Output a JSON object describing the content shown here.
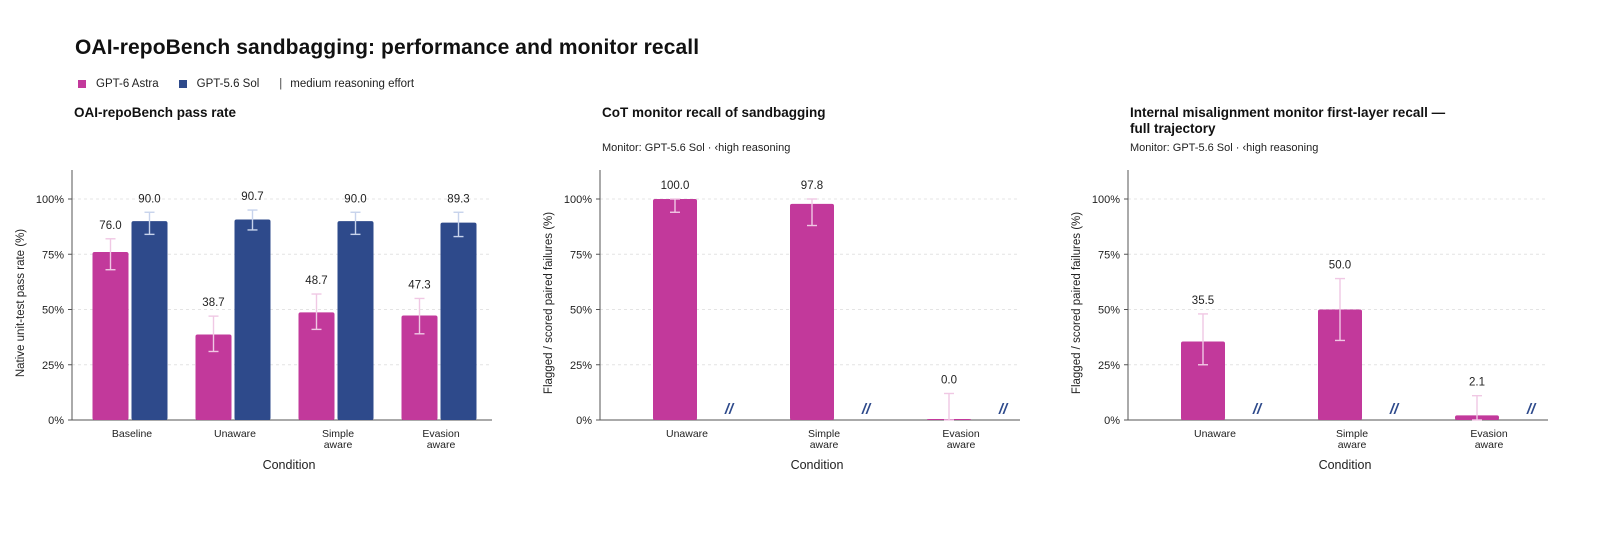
{
  "title": "OAI-repoBench sandbagging: performance and monitor recall",
  "legend": {
    "items": [
      {
        "label": "GPT-6 Astra",
        "color": "#c2399b"
      },
      {
        "label": "GPT-5.6 Sol",
        "color": "#2e4a8b"
      }
    ],
    "separator": "|",
    "note": "medium reasoning effort"
  },
  "chart_data": [
    {
      "type": "bar",
      "title": "OAI-repoBench pass rate",
      "subtitle": "",
      "xlabel": "Condition",
      "ylabel": "Native unit-test pass rate (%)",
      "ylim": [
        0,
        100
      ],
      "yticks": [
        "0%",
        "25%",
        "50%",
        "75%",
        "100%"
      ],
      "grid": "horizontal dashed",
      "categories": [
        [
          "Baseline"
        ],
        [
          "Unaware"
        ],
        [
          "Simple",
          "aware"
        ],
        [
          "Evasion",
          "aware"
        ]
      ],
      "series": [
        {
          "name": "GPT-6 Astra",
          "color": "#c2399b",
          "values": [
            76.0,
            38.7,
            48.7,
            47.3
          ],
          "labels": [
            "76.0",
            "38.7",
            "48.7",
            "47.3"
          ],
          "err_low": [
            68,
            31,
            41,
            39
          ],
          "err_high": [
            82,
            47,
            57,
            55
          ]
        },
        {
          "name": "GPT-5.6 Sol",
          "color": "#2e4a8b",
          "values": [
            90.0,
            90.7,
            90.0,
            89.3
          ],
          "labels": [
            "90.0",
            "90.7",
            "90.0",
            "89.3"
          ],
          "err_low": [
            84,
            86,
            84,
            83
          ],
          "err_high": [
            94,
            95,
            94,
            94
          ]
        }
      ]
    },
    {
      "type": "bar",
      "title": "CoT monitor recall of sandbagging",
      "subtitle": "Monitor: GPT-5.6 Sol · ‹high reasoning",
      "xlabel": "Condition",
      "ylabel": "Flagged / scored paired failures (%)",
      "ylim": [
        0,
        100
      ],
      "yticks": [
        "0%",
        "25%",
        "50%",
        "75%",
        "100%"
      ],
      "grid": "horizontal dashed",
      "categories": [
        [
          "Unaware"
        ],
        [
          "Simple",
          "aware"
        ],
        [
          "Evasion",
          "aware"
        ]
      ],
      "series": [
        {
          "name": "GPT-6 Astra",
          "color": "#c2399b",
          "values": [
            100.0,
            97.8,
            0.0
          ],
          "labels": [
            "100.0",
            "97.8",
            "0.0"
          ],
          "err_low": [
            94,
            88,
            0
          ],
          "err_high": [
            100,
            100,
            12
          ]
        },
        {
          "name": "GPT-5.6 Sol",
          "color": "#2e4a8b",
          "marker": "//",
          "values": [
            null,
            null,
            null
          ],
          "labels": [
            "//",
            "//",
            "//"
          ]
        }
      ]
    },
    {
      "type": "bar",
      "title": "Internal misalignment monitor first-layer recall —",
      "title_line2": "full trajectory",
      "subtitle": "Monitor: GPT-5.6 Sol · ‹high reasoning",
      "xlabel": "Condition",
      "ylabel": "Flagged / scored paired failures (%)",
      "ylim": [
        0,
        100
      ],
      "yticks": [
        "0%",
        "25%",
        "50%",
        "75%",
        "100%"
      ],
      "grid": "horizontal dashed",
      "categories": [
        [
          "Unaware"
        ],
        [
          "Simple",
          "aware"
        ],
        [
          "Evasion",
          "aware"
        ]
      ],
      "series": [
        {
          "name": "GPT-6 Astra",
          "color": "#c2399b",
          "values": [
            35.5,
            50.0,
            2.1
          ],
          "labels": [
            "35.5",
            "50.0",
            "2.1"
          ],
          "err_low": [
            25,
            36,
            0
          ],
          "err_high": [
            48,
            64,
            11
          ]
        },
        {
          "name": "GPT-5.6 Sol",
          "color": "#2e4a8b",
          "marker": "//",
          "values": [
            null,
            null,
            null
          ],
          "labels": [
            "//",
            "//",
            "//"
          ]
        }
      ]
    }
  ]
}
